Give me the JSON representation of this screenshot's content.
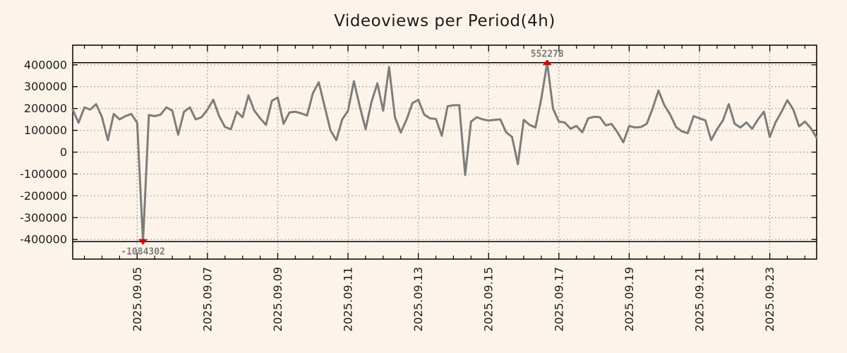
{
  "title": "Videoviews per Period(4h)",
  "colors": {
    "background": "#fcf4ea",
    "series_line": "#7d7d7d",
    "grid": "#a9a9a9",
    "axis": "#000000",
    "clip_line": "#000000",
    "marker": "#e60000",
    "annotation_text": "#7a7a7a",
    "tick_label_text": "#1c1c1c",
    "title_text": "#1c1c1c"
  },
  "chart_data": {
    "type": "line",
    "title": "Videoviews per Period(4h)",
    "xlabel": "",
    "ylabel": "",
    "grid": true,
    "legend_visible": false,
    "x_start": "2025.09.03 02:00",
    "x_interval_hours": 4,
    "ylim": [
      -490000,
      490000
    ],
    "y_ticks": [
      400000,
      300000,
      200000,
      100000,
      0,
      -100000,
      -200000,
      -300000,
      -400000
    ],
    "clip_levels": [
      410000,
      -410000
    ],
    "x_tick_labels": [
      "2025.09.05",
      "2025.09.07",
      "2025.09.09",
      "2025.09.11",
      "2025.09.13",
      "2025.09.15",
      "2025.09.17",
      "2025.09.19",
      "2025.09.21",
      "2025.09.23"
    ],
    "x_tick_indices": [
      11,
      23,
      35,
      47,
      59,
      71,
      83,
      95,
      107,
      119
    ],
    "minor_tick_every_indices": 3,
    "values": [
      195000,
      135000,
      205000,
      195000,
      220000,
      160000,
      55000,
      175000,
      150000,
      165000,
      175000,
      135000,
      -1084302,
      170000,
      165000,
      172000,
      205000,
      190000,
      80000,
      185000,
      205000,
      150000,
      160000,
      195000,
      240000,
      165000,
      115000,
      105000,
      185000,
      160000,
      260000,
      190000,
      155000,
      125000,
      235000,
      250000,
      130000,
      182000,
      185000,
      178000,
      168000,
      270000,
      320000,
      210000,
      100000,
      55000,
      150000,
      190000,
      325000,
      210000,
      105000,
      230000,
      315000,
      190000,
      390000,
      160000,
      90000,
      150000,
      225000,
      240000,
      172000,
      155000,
      152000,
      75000,
      210000,
      215000,
      215000,
      -105000,
      140000,
      160000,
      150000,
      145000,
      148000,
      150000,
      91000,
      70000,
      -55000,
      148000,
      125000,
      113000,
      245000,
      552278,
      200000,
      140000,
      136000,
      107000,
      120000,
      91000,
      155000,
      162000,
      160000,
      123000,
      129000,
      91000,
      45000,
      120000,
      113000,
      115000,
      130000,
      200000,
      282000,
      215000,
      172000,
      115000,
      95000,
      87000,
      165000,
      155000,
      146000,
      55000,
      105000,
      145000,
      220000,
      130000,
      113000,
      136000,
      107000,
      150000,
      185000,
      70000,
      137000,
      185000,
      238000,
      196000,
      118000,
      140000,
      110000,
      66000
    ],
    "annotations": {
      "max": {
        "label": "552278",
        "value": 552278,
        "index": 81
      },
      "min": {
        "label": "-1084302",
        "value": -1084302,
        "index": 12
      }
    }
  }
}
